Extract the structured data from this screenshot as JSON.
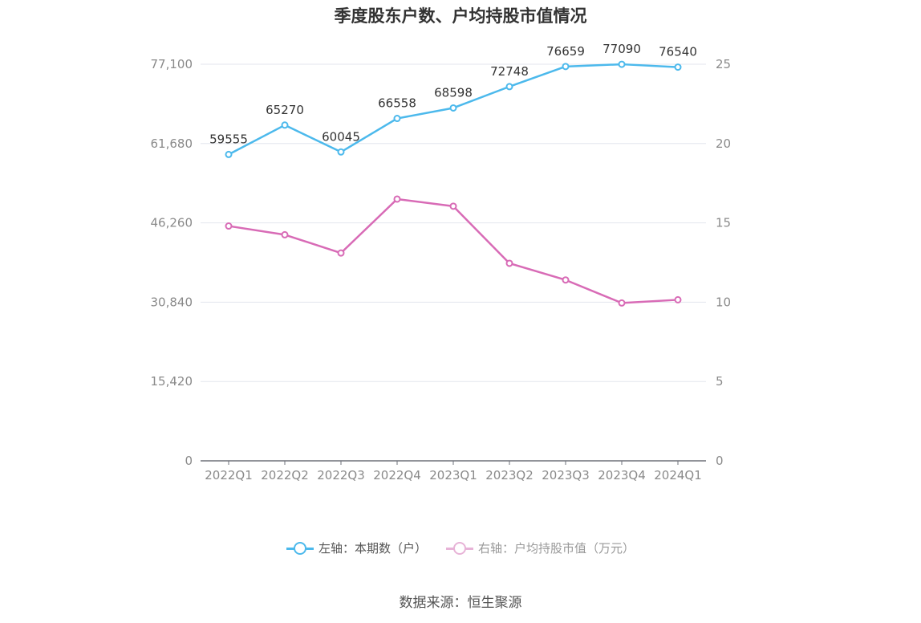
{
  "chart_data": {
    "type": "line",
    "title": "季度股东户数、户均持股市值情况",
    "categories": [
      "2022Q1",
      "2022Q2",
      "2022Q3",
      "2022Q4",
      "2023Q1",
      "2023Q2",
      "2023Q3",
      "2023Q4",
      "2024Q1"
    ],
    "left_axis": {
      "ticks": [
        "0",
        "15,420",
        "30,840",
        "46,260",
        "61,680",
        "77,100"
      ],
      "ylim": [
        0,
        77100
      ]
    },
    "right_axis": {
      "ticks": [
        "0",
        "5",
        "10",
        "15",
        "20",
        "25"
      ],
      "ylim": [
        0,
        25
      ]
    },
    "series": [
      {
        "name": "左轴：本期数（户）",
        "axis": "left",
        "color": "#4cb9ec",
        "values": [
          59555,
          65270,
          60045,
          66558,
          68598,
          72748,
          76659,
          77090,
          76540
        ],
        "labels": [
          "59555",
          "65270",
          "60045",
          "66558",
          "68598",
          "72748",
          "76659",
          "77090",
          "76540"
        ]
      },
      {
        "name": "右轴：户均持股市值（万元）",
        "axis": "right",
        "color": "#d86bb6",
        "values": [
          14.8,
          14.25,
          13.1,
          16.5,
          16.05,
          12.45,
          11.4,
          9.95,
          10.15
        ]
      }
    ],
    "grid": true,
    "legend_position": "bottom"
  },
  "legend": {
    "left_label": "左轴：本期数（户）",
    "right_label": "右轴：户均持股市值（万元）"
  },
  "source": "数据来源：恒生聚源"
}
